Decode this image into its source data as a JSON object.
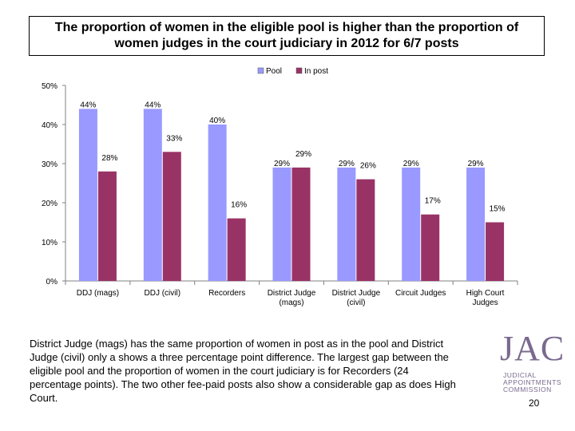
{
  "title": "The proportion of women in the eligible pool is higher than the proportion of women judges in the court judiciary in 2012 for 6/7 posts",
  "chart_data": {
    "type": "bar",
    "categories": [
      "DDJ (mags)",
      "DDJ (civil)",
      "Recorders",
      "District Judge (mags)",
      "District Judge (civil)",
      "Circuit Judges",
      "High Court Judges"
    ],
    "category_lines": [
      [
        "DDJ (mags)"
      ],
      [
        "DDJ (civil)"
      ],
      [
        "Recorders"
      ],
      [
        "District Judge",
        "(mags)"
      ],
      [
        "District Judge",
        "(civil)"
      ],
      [
        "Circuit Judges"
      ],
      [
        "High Court",
        "Judges"
      ]
    ],
    "series": [
      {
        "name": "Pool",
        "color": "#9999ff",
        "values": [
          44,
          44,
          40,
          29,
          29,
          29,
          29
        ],
        "labels": [
          "44%",
          "44%",
          "40%",
          "29%",
          "29%",
          "29%",
          "29%"
        ]
      },
      {
        "name": "In post",
        "color": "#993366",
        "values": [
          28,
          33,
          16,
          29,
          26,
          17,
          15
        ],
        "labels": [
          "28%",
          "33%",
          "16%",
          "29%",
          "26%",
          "17%",
          "15%"
        ]
      }
    ],
    "ylim": [
      0,
      50
    ],
    "yticks": [
      "0%",
      "10%",
      "20%",
      "30%",
      "40%",
      "50%"
    ],
    "legend_position": "top",
    "grid": false
  },
  "body_text": "District Judge (mags) has the same proportion of women in post as in the pool and District Judge (civil) only a shows a three percentage point difference. The largest gap between the eligible pool and the proportion of women in the court judiciary is for Recorders (24 percentage points). The two other fee-paid posts also show a considerable gap as does High Court.",
  "logo": {
    "mark": "JAC",
    "lines": [
      "JUDICIAL",
      "APPOINTMENTS",
      "COMMISSION"
    ]
  },
  "page_number": "20"
}
